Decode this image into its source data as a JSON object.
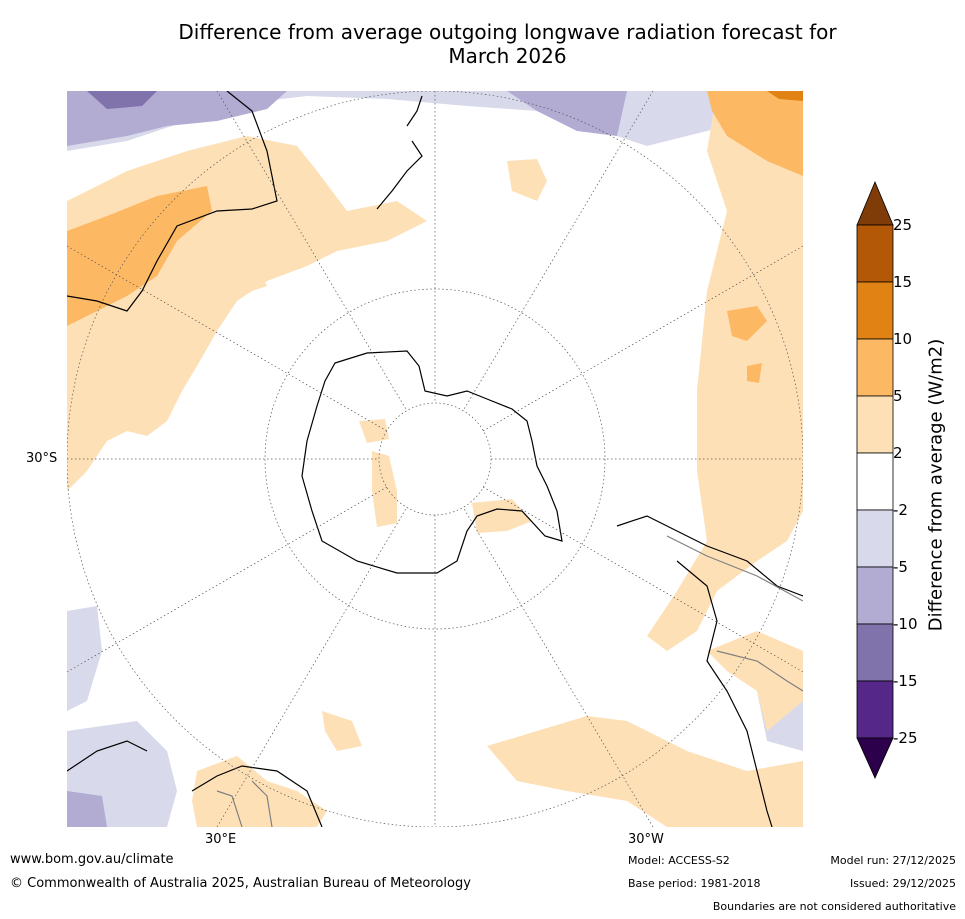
{
  "title": {
    "line1": "Difference from average outgoing longwave radiation forecast for",
    "line2": "March 2026"
  },
  "graticule_labels": {
    "lat_left": "30°S",
    "lon_bottom_left": "30°E",
    "lon_bottom_right": "30°W"
  },
  "colorbar": {
    "title": "Difference from average (W/m2)",
    "ticks": [
      "25",
      "15",
      "10",
      "5",
      "2",
      "-2",
      "-5",
      "-10",
      "-15",
      "-25"
    ],
    "colors": {
      "above_max": "#7f3b08",
      "c15_25": "#b35806",
      "c10_15": "#e08214",
      "c5_10": "#fdb863",
      "c2_5": "#fee0b6",
      "neutral": "#ffffff",
      "cm5_m2": "#d8daeb",
      "cm10_m5": "#b2abd2",
      "cm15_m10": "#8073ac",
      "cm25_m15": "#542788",
      "below_min": "#2d004b"
    }
  },
  "footer": {
    "website": "www.bom.gov.au/climate",
    "copyright": "© Commonwealth of Australia 2025, Australian Bureau of Meteorology",
    "model": "Model: ACCESS-S2",
    "base_period": "Base period: 1981-2018",
    "model_run": "Model run: 27/12/2025",
    "issued": "Issued: 29/12/2025",
    "disclaimer": "Boundaries are not considered authoritative"
  }
}
